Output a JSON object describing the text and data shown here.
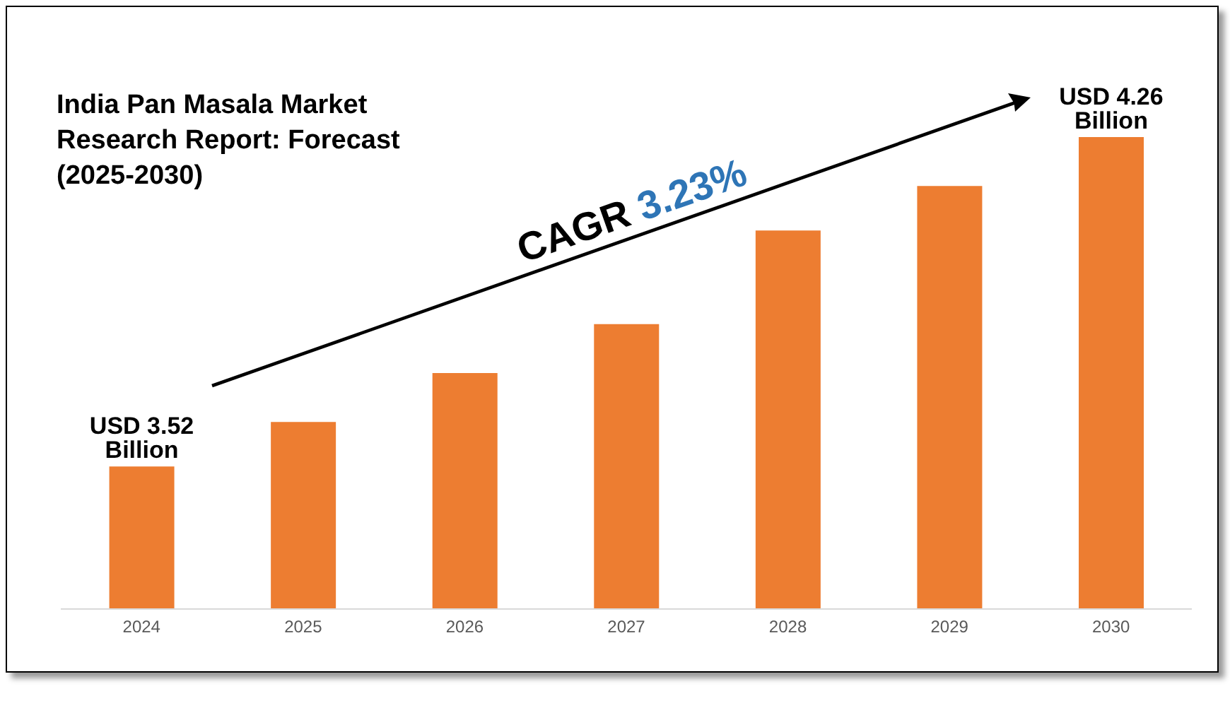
{
  "chart_data": {
    "type": "bar",
    "title": "India Pan Masala Market Research Report: Forecast (2025-2030)",
    "categories": [
      "2024",
      "2025",
      "2026",
      "2027",
      "2028",
      "2029",
      "2030"
    ],
    "values": [
      3.52,
      3.62,
      3.73,
      3.84,
      4.05,
      4.15,
      4.26
    ],
    "color": "#ed7d31",
    "ylim": [
      3.2,
      4.26
    ],
    "value_labels": [
      "USD 3.52 Billion",
      null,
      null,
      null,
      null,
      null,
      "USD 4.26 Billion"
    ],
    "annotations": [
      "CAGR 3.23%"
    ]
  }
}
